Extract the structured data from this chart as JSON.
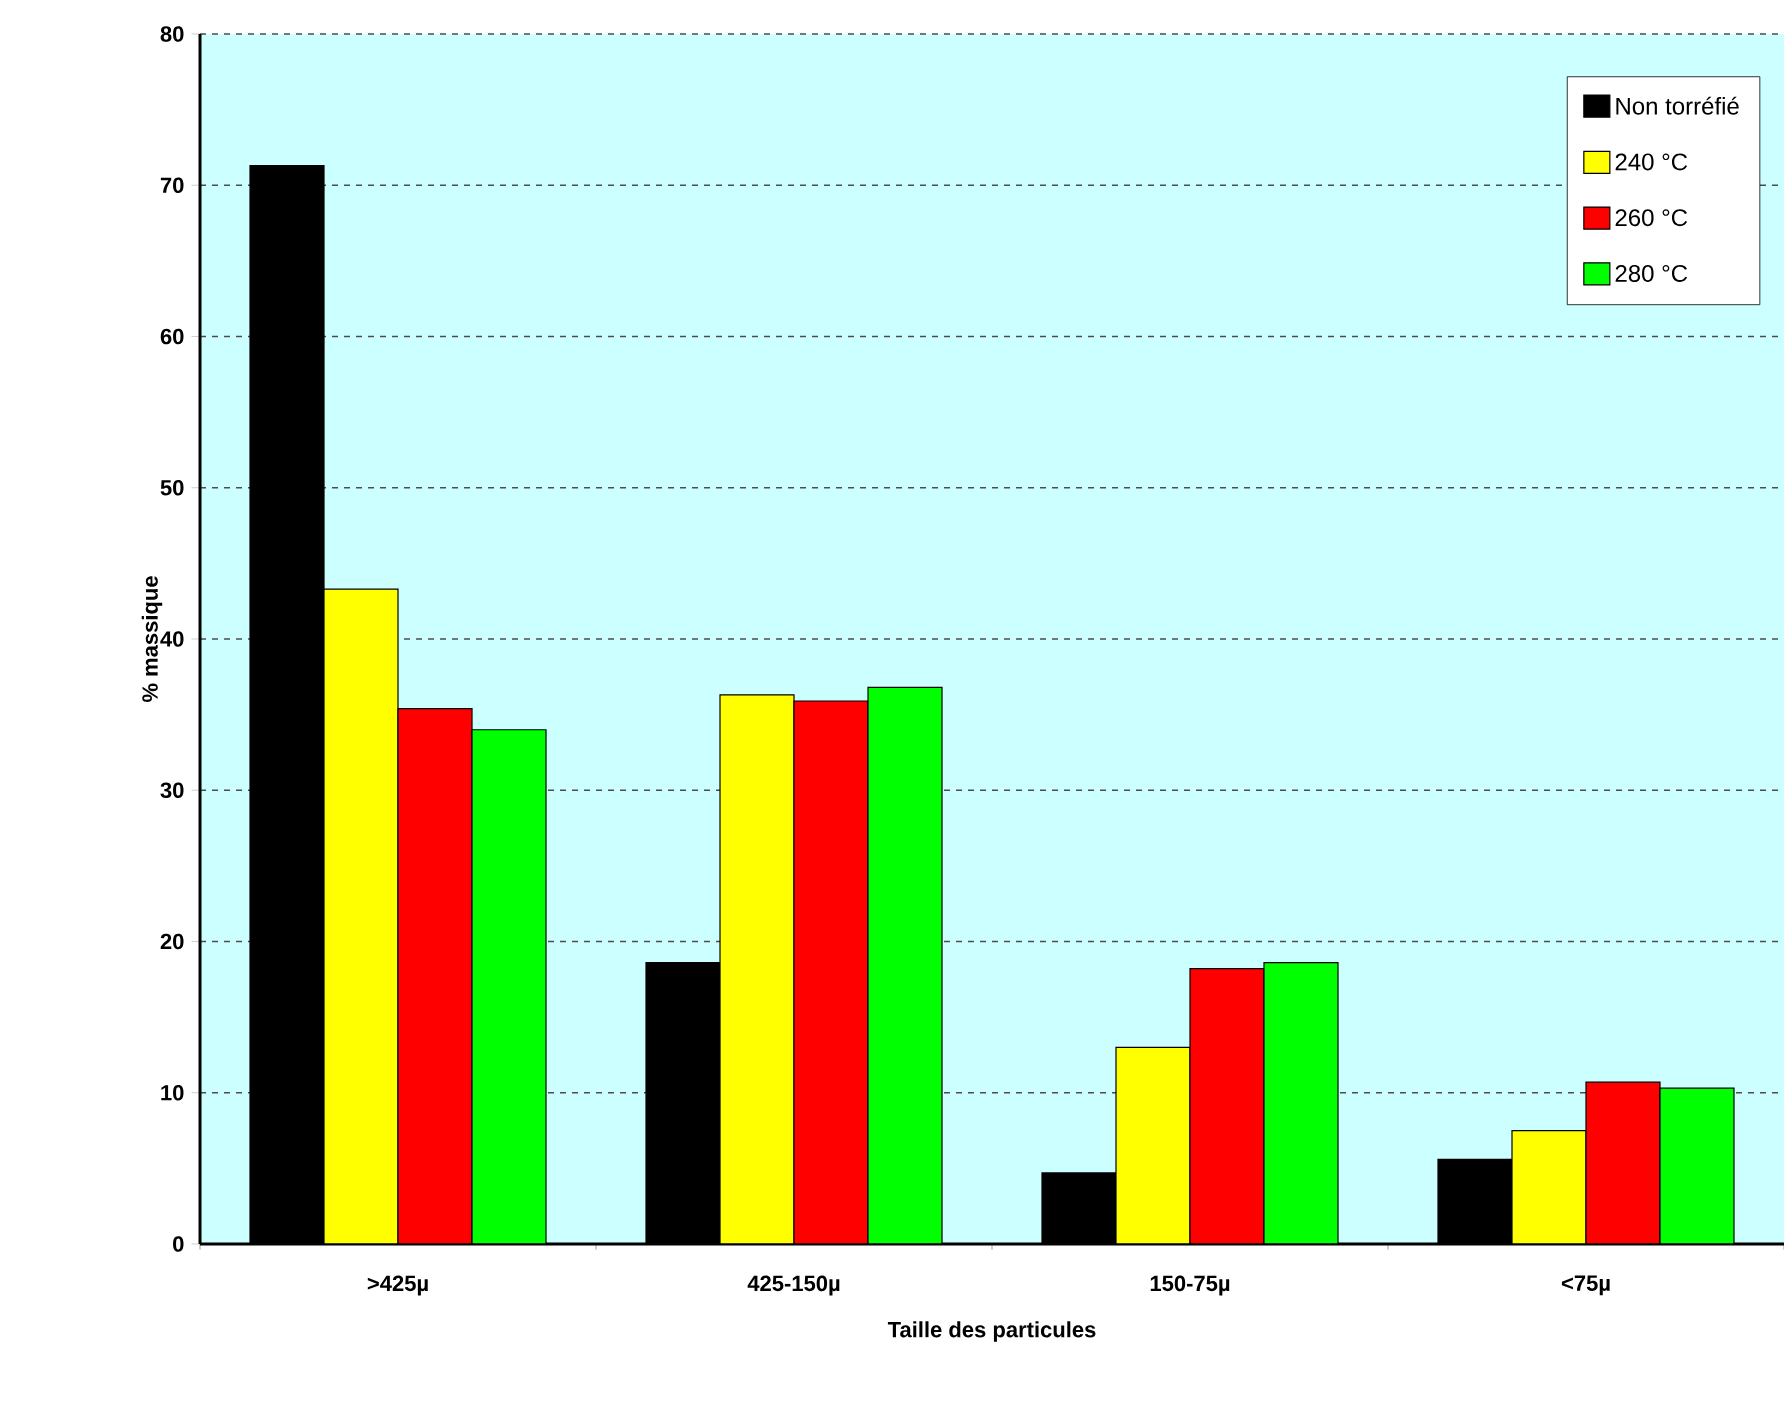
{
  "chart_data": {
    "type": "bar",
    "xlabel": "Taille des particules",
    "ylabel": "% massique",
    "categories": [
      ">425µ",
      "425-150µ",
      "150-75µ",
      "<75µ"
    ],
    "series": [
      {
        "name": "Non torréfié",
        "color": "#000000",
        "values": [
          71.3,
          18.6,
          4.7,
          5.6
        ]
      },
      {
        "name": "240 °C",
        "color": "#ffff00",
        "values": [
          43.3,
          36.3,
          13.0,
          7.5
        ]
      },
      {
        "name": "260 °C",
        "color": "#ff0000",
        "values": [
          35.4,
          35.9,
          18.2,
          10.7
        ]
      },
      {
        "name": "280 °C",
        "color": "#00ff00",
        "values": [
          34.0,
          36.8,
          18.6,
          10.3
        ]
      }
    ],
    "ylim": [
      0,
      80
    ],
    "yticks": [
      0,
      10,
      20,
      30,
      40,
      50,
      60,
      70,
      80
    ],
    "grid": "y",
    "legend": "top right"
  }
}
